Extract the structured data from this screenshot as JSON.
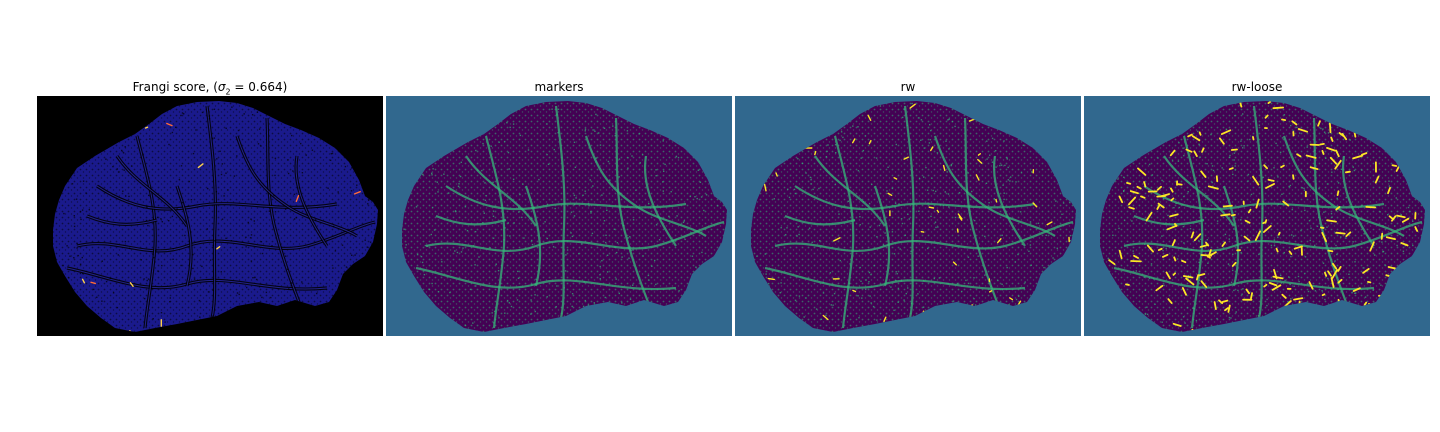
{
  "figure": {
    "panels": [
      {
        "title_prefix": "Frangi score, (",
        "title_symbol": "σ",
        "title_sub": "2",
        "title_suffix": " = 0.664)",
        "colormap": "frangi",
        "background_color": "#000000",
        "tissue_color": "#1a1a8c",
        "detail_color": "#0a0a3a",
        "highlight_colors": [
          "#ff6b3a",
          "#ffd24a"
        ]
      },
      {
        "title": "markers",
        "colormap": "viridis",
        "background_color": "#31688e",
        "tissue_color": "#440154",
        "detail_color": "#35b779"
      },
      {
        "title": "rw",
        "colormap": "viridis",
        "background_color": "#31688e",
        "tissue_color": "#440154",
        "detail_color": "#35b779",
        "highlight_colors": [
          "#fde725"
        ]
      },
      {
        "title": "rw-loose",
        "colormap": "viridis",
        "background_color": "#31688e",
        "tissue_color": "#440154",
        "detail_color": "#35b779",
        "highlight_colors": [
          "#fde725"
        ]
      }
    ]
  }
}
